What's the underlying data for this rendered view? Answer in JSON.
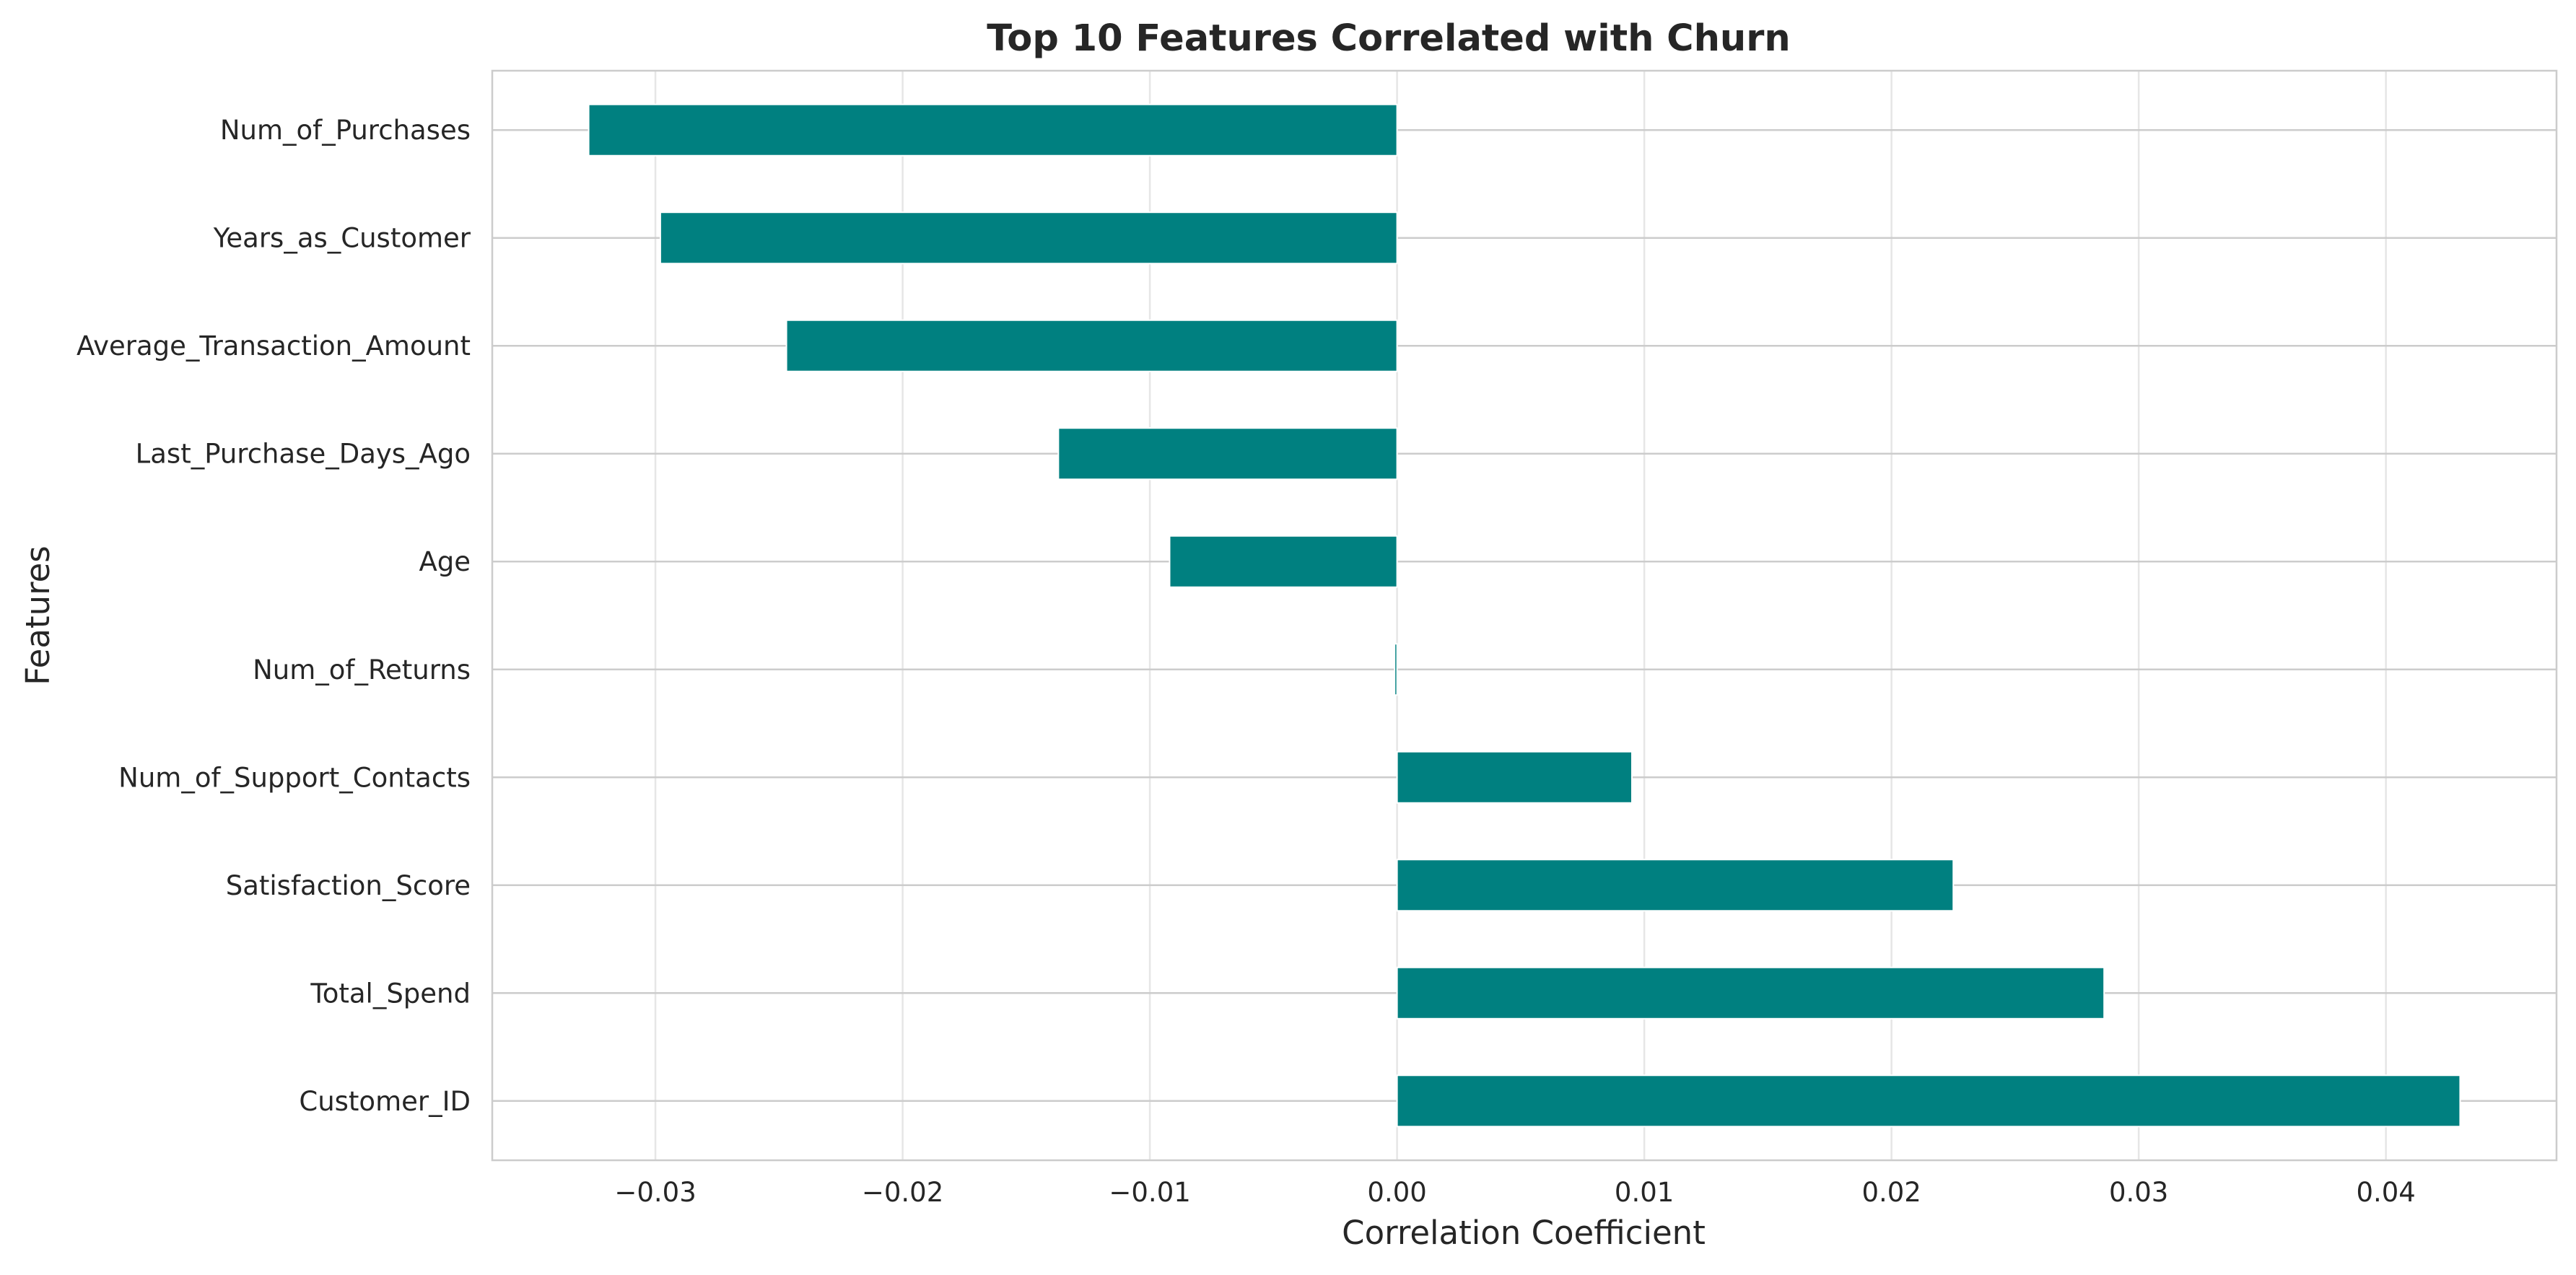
{
  "chart_data": {
    "type": "bar",
    "orientation": "horizontal",
    "title": "Top 10 Features Correlated with Churn",
    "xlabel": "Correlation Coefficient",
    "ylabel": "Features",
    "categories": [
      "Num_of_Purchases",
      "Years_as_Customer",
      "Average_Transaction_Amount",
      "Last_Purchase_Days_Ago",
      "Age",
      "Num_of_Returns",
      "Num_of_Support_Contacts",
      "Satisfaction_Score",
      "Total_Spend",
      "Customer_ID"
    ],
    "values": [
      -0.0327,
      -0.0298,
      -0.0247,
      -0.0137,
      -0.0092,
      -0.0001,
      0.0095,
      0.0225,
      0.0286,
      0.043
    ],
    "xlim": [
      -0.0366,
      0.0469
    ],
    "xticks": [
      -0.03,
      -0.02,
      -0.01,
      0.0,
      0.01,
      0.02,
      0.03,
      0.04
    ],
    "xtick_labels": [
      "−0.03",
      "−0.02",
      "−0.01",
      "0.00",
      "0.01",
      "0.02",
      "0.03",
      "0.04"
    ],
    "grid": true,
    "colors": {
      "bar": "#008080",
      "grid": "#e6e6e6",
      "text": "#262626"
    }
  }
}
